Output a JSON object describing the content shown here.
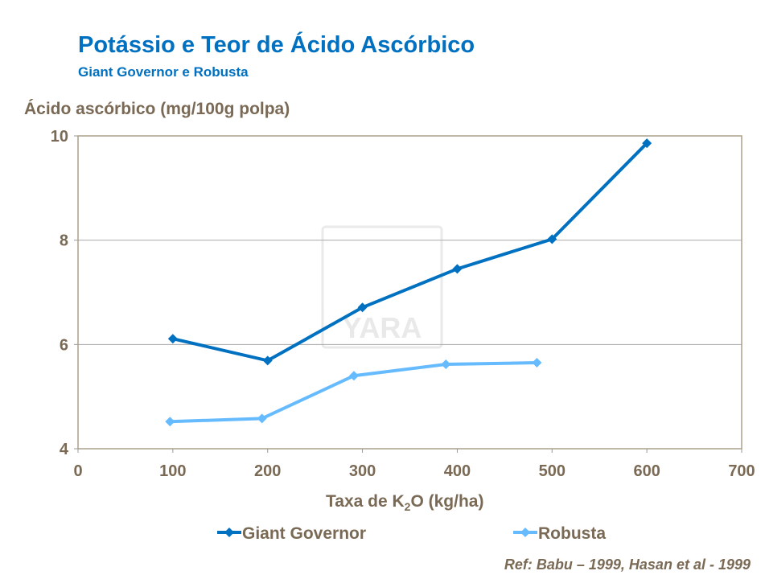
{
  "chart_data": {
    "type": "line",
    "title": "Potássio e Teor de Ácido Ascórbico",
    "subtitle": "Giant Governor e Robusta",
    "ylabel": "Ácido ascórbico (mg/100g polpa)",
    "xlabel_main": "Taxa de K",
    "xlabel_sub": "2",
    "xlabel_rest": "O (kg/ha)",
    "xlim": [
      0,
      700
    ],
    "ylim": [
      4,
      10
    ],
    "xticks": [
      0,
      100,
      200,
      300,
      400,
      500,
      600,
      700
    ],
    "yticks": [
      4,
      6,
      8,
      10
    ],
    "grid": "horizontal",
    "legend": "bottom",
    "series": [
      {
        "name": "Giant Governor",
        "color": "#0070C0",
        "x": [
          100,
          200,
          300,
          400,
          500,
          600
        ],
        "y": [
          6.11,
          5.69,
          6.71,
          7.45,
          8.02,
          9.86
        ]
      },
      {
        "name": "Robusta",
        "color": "#66BBFF",
        "x": [
          97,
          194,
          291,
          388,
          484
        ],
        "y": [
          4.52,
          4.58,
          5.4,
          5.62,
          5.65
        ]
      }
    ],
    "reference": "Ref: Babu – 1999, Hasan et al - 1999",
    "watermark": "YARA"
  }
}
